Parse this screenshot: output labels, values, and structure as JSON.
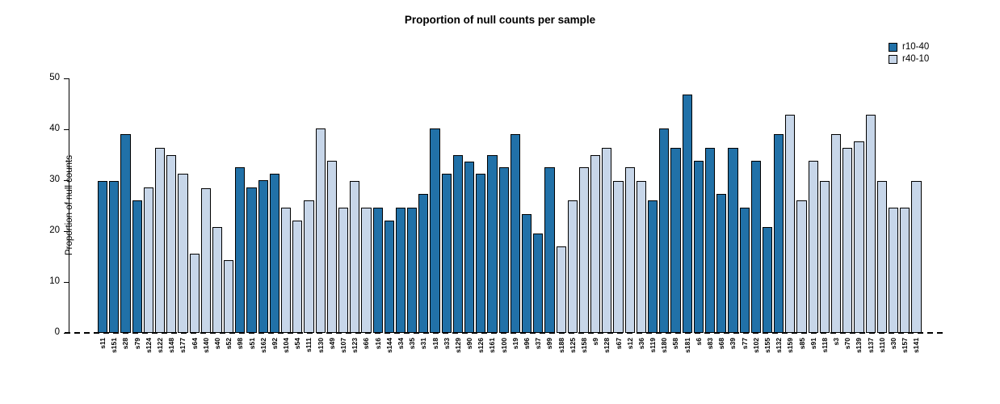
{
  "title": "Proportion of null counts per sample",
  "chart_data": {
    "type": "bar",
    "title": "Proportion of null counts per sample",
    "xlabel": "",
    "ylabel": "Proportion of null counts",
    "ylim": [
      0,
      50
    ],
    "yticks": [
      0,
      10,
      20,
      30,
      40,
      50
    ],
    "grid": false,
    "legend_position": "top-right",
    "legend": [
      {
        "label": "r10-40",
        "color": "#2171a8"
      },
      {
        "label": "r40-10",
        "color": "#c7d6e9"
      }
    ],
    "series_colors": {
      "r10-40": "#2171a8",
      "r40-10": "#c7d6e9"
    },
    "bars": [
      {
        "label": "s11",
        "value": 29.8,
        "series": "r10-40"
      },
      {
        "label": "s151",
        "value": 29.8,
        "series": "r10-40"
      },
      {
        "label": "s28",
        "value": 39.0,
        "series": "r10-40"
      },
      {
        "label": "s79",
        "value": 26.0,
        "series": "r10-40"
      },
      {
        "label": "s124",
        "value": 28.6,
        "series": "r40-10"
      },
      {
        "label": "s122",
        "value": 36.4,
        "series": "r40-10"
      },
      {
        "label": "s148",
        "value": 35.0,
        "series": "r40-10"
      },
      {
        "label": "s177",
        "value": 31.2,
        "series": "r40-10"
      },
      {
        "label": "s64",
        "value": 15.6,
        "series": "r40-10"
      },
      {
        "label": "s140",
        "value": 28.5,
        "series": "r40-10"
      },
      {
        "label": "s40",
        "value": 20.8,
        "series": "r40-10"
      },
      {
        "label": "s52",
        "value": 14.3,
        "series": "r40-10"
      },
      {
        "label": "s98",
        "value": 32.5,
        "series": "r10-40"
      },
      {
        "label": "s51",
        "value": 28.6,
        "series": "r10-40"
      },
      {
        "label": "s162",
        "value": 30.0,
        "series": "r10-40"
      },
      {
        "label": "s92",
        "value": 31.2,
        "series": "r10-40"
      },
      {
        "label": "s104",
        "value": 24.6,
        "series": "r40-10"
      },
      {
        "label": "s54",
        "value": 22.1,
        "series": "r40-10"
      },
      {
        "label": "s111",
        "value": 26.1,
        "series": "r40-10"
      },
      {
        "label": "s130",
        "value": 40.2,
        "series": "r40-10"
      },
      {
        "label": "s49",
        "value": 33.8,
        "series": "r40-10"
      },
      {
        "label": "s107",
        "value": 24.6,
        "series": "r40-10"
      },
      {
        "label": "s123",
        "value": 29.8,
        "series": "r40-10"
      },
      {
        "label": "s66",
        "value": 24.6,
        "series": "r40-10"
      },
      {
        "label": "s16",
        "value": 24.6,
        "series": "r10-40"
      },
      {
        "label": "s144",
        "value": 22.1,
        "series": "r10-40"
      },
      {
        "label": "s34",
        "value": 24.6,
        "series": "r10-40"
      },
      {
        "label": "s35",
        "value": 24.6,
        "series": "r10-40"
      },
      {
        "label": "s31",
        "value": 27.3,
        "series": "r10-40"
      },
      {
        "label": "s18",
        "value": 40.1,
        "series": "r10-40"
      },
      {
        "label": "s33",
        "value": 31.2,
        "series": "r10-40"
      },
      {
        "label": "s129",
        "value": 35.0,
        "series": "r10-40"
      },
      {
        "label": "s90",
        "value": 33.7,
        "series": "r10-40"
      },
      {
        "label": "s126",
        "value": 31.2,
        "series": "r10-40"
      },
      {
        "label": "s161",
        "value": 35.0,
        "series": "r10-40"
      },
      {
        "label": "s100",
        "value": 32.5,
        "series": "r10-40"
      },
      {
        "label": "s19",
        "value": 39.0,
        "series": "r10-40"
      },
      {
        "label": "s96",
        "value": 23.4,
        "series": "r10-40"
      },
      {
        "label": "s37",
        "value": 19.6,
        "series": "r10-40"
      },
      {
        "label": "s99",
        "value": 32.5,
        "series": "r10-40"
      },
      {
        "label": "s188",
        "value": 17.0,
        "series": "r40-10"
      },
      {
        "label": "s125",
        "value": 26.0,
        "series": "r40-10"
      },
      {
        "label": "s158",
        "value": 32.5,
        "series": "r40-10"
      },
      {
        "label": "s9",
        "value": 35.0,
        "series": "r40-10"
      },
      {
        "label": "s128",
        "value": 36.4,
        "series": "r40-10"
      },
      {
        "label": "s67",
        "value": 29.9,
        "series": "r40-10"
      },
      {
        "label": "s12",
        "value": 32.5,
        "series": "r40-10"
      },
      {
        "label": "s36",
        "value": 29.8,
        "series": "r40-10"
      },
      {
        "label": "s119",
        "value": 26.0,
        "series": "r10-40"
      },
      {
        "label": "s180",
        "value": 40.2,
        "series": "r10-40"
      },
      {
        "label": "s58",
        "value": 36.4,
        "series": "r10-40"
      },
      {
        "label": "s181",
        "value": 46.8,
        "series": "r10-40"
      },
      {
        "label": "s6",
        "value": 33.8,
        "series": "r10-40"
      },
      {
        "label": "s83",
        "value": 36.4,
        "series": "r10-40"
      },
      {
        "label": "s68",
        "value": 27.3,
        "series": "r10-40"
      },
      {
        "label": "s39",
        "value": 36.4,
        "series": "r10-40"
      },
      {
        "label": "s77",
        "value": 24.6,
        "series": "r10-40"
      },
      {
        "label": "s102",
        "value": 33.8,
        "series": "r10-40"
      },
      {
        "label": "s155",
        "value": 20.8,
        "series": "r10-40"
      },
      {
        "label": "s132",
        "value": 39.0,
        "series": "r10-40"
      },
      {
        "label": "s159",
        "value": 42.8,
        "series": "r40-10"
      },
      {
        "label": "s85",
        "value": 26.0,
        "series": "r40-10"
      },
      {
        "label": "s91",
        "value": 33.8,
        "series": "r40-10"
      },
      {
        "label": "s118",
        "value": 29.9,
        "series": "r40-10"
      },
      {
        "label": "s3",
        "value": 39.0,
        "series": "r40-10"
      },
      {
        "label": "s70",
        "value": 36.4,
        "series": "r40-10"
      },
      {
        "label": "s139",
        "value": 37.7,
        "series": "r40-10"
      },
      {
        "label": "s137",
        "value": 42.8,
        "series": "r40-10"
      },
      {
        "label": "s110",
        "value": 29.9,
        "series": "r40-10"
      },
      {
        "label": "s30",
        "value": 24.6,
        "series": "r40-10"
      },
      {
        "label": "s157",
        "value": 24.6,
        "series": "r40-10"
      },
      {
        "label": "s141",
        "value": 29.8,
        "series": "r40-10"
      }
    ]
  }
}
